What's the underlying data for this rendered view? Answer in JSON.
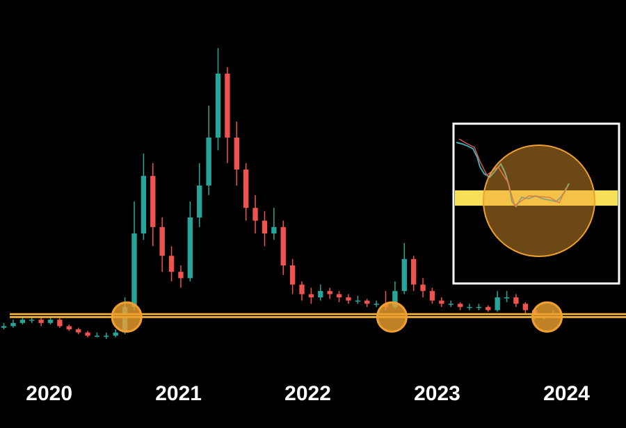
{
  "chart_data": {
    "type": "candlestick",
    "x": [
      2019.65,
      2019.722,
      2019.794,
      2019.866,
      2019.938,
      2020.01,
      2020.082,
      2020.154,
      2020.226,
      2020.298,
      2020.37,
      2020.442,
      2020.514,
      2020.586,
      2020.658,
      2020.73,
      2020.802,
      2020.874,
      2020.946,
      2021.018,
      2021.09,
      2021.162,
      2021.234,
      2021.306,
      2021.378,
      2021.45,
      2021.522,
      2021.594,
      2021.666,
      2021.738,
      2021.81,
      2021.882,
      2021.954,
      2022.026,
      2022.098,
      2022.17,
      2022.242,
      2022.314,
      2022.386,
      2022.458,
      2022.53,
      2022.602,
      2022.674,
      2022.746,
      2022.818,
      2022.89,
      2022.962,
      2023.034,
      2023.106,
      2023.178,
      2023.25,
      2023.322,
      2023.394,
      2023.466,
      2023.538,
      2023.61,
      2023.682,
      2023.754,
      2023.826,
      2023.898
    ],
    "open": [
      10.5,
      11,
      12,
      13,
      13,
      12,
      13,
      11,
      10,
      9,
      8,
      8,
      8,
      9,
      17,
      40,
      58,
      42,
      33,
      28,
      26,
      45,
      55,
      70,
      90,
      70,
      60,
      48,
      44,
      40,
      42,
      30,
      24,
      21,
      20,
      22,
      21,
      20,
      19,
      19,
      18,
      18,
      17,
      22,
      32,
      24,
      22,
      19,
      18,
      18,
      17,
      17,
      17,
      16,
      20,
      20,
      18,
      16,
      14,
      14
    ],
    "high": [
      12,
      13,
      14,
      14.5,
      14,
      14.5,
      13.5,
      11.5,
      10.5,
      9.5,
      9,
      9,
      10,
      20,
      50,
      65,
      62,
      45,
      36,
      30,
      50,
      62,
      80,
      98,
      92,
      75,
      62,
      52,
      47,
      48,
      44,
      32,
      25,
      23,
      24,
      23,
      22,
      21,
      20.5,
      19.5,
      19,
      22,
      25,
      37,
      33,
      26,
      23,
      20,
      19,
      18.5,
      18,
      18,
      17.5,
      22,
      22,
      21,
      18.5,
      16.5,
      15,
      16
    ],
    "low": [
      10,
      10.5,
      11.5,
      12,
      11,
      11.5,
      10.5,
      9.5,
      8.5,
      7.5,
      7.5,
      7,
      7.5,
      8.5,
      16,
      38,
      36,
      28,
      25,
      23,
      25,
      42,
      52,
      66,
      62,
      55,
      44,
      40,
      36,
      38,
      27,
      21,
      19,
      18,
      19,
      19.5,
      18.5,
      18,
      18,
      17,
      17,
      16,
      16.5,
      21,
      22,
      20,
      18,
      17,
      17,
      16,
      16,
      16,
      15.5,
      15.5,
      18.5,
      17,
      15,
      13,
      13,
      13.5
    ],
    "close": [
      11,
      12,
      13,
      13,
      12,
      13,
      11,
      10,
      9,
      8,
      8,
      8,
      9,
      17,
      40,
      58,
      42,
      33,
      28,
      26,
      45,
      55,
      70,
      90,
      70,
      60,
      48,
      44,
      40,
      42,
      30,
      24,
      21,
      20,
      22,
      21,
      20,
      19,
      19,
      18,
      18,
      17,
      22,
      32,
      24,
      22,
      19,
      18,
      18,
      17,
      17,
      17,
      16,
      20,
      20,
      18,
      16,
      14,
      14,
      15
    ],
    "up_color": "#26a69a",
    "down_color": "#ef5350",
    "xlim": [
      2019.62,
      2024.46
    ],
    "ylim": [
      0,
      100
    ],
    "xticks": [
      2020,
      2021,
      2022,
      2023,
      2024
    ],
    "support_level": 14.3,
    "support_color": "#f5b731",
    "highlights": [
      2020.6,
      2022.65,
      2023.85
    ],
    "highlight_color": "#f0a030"
  }
}
